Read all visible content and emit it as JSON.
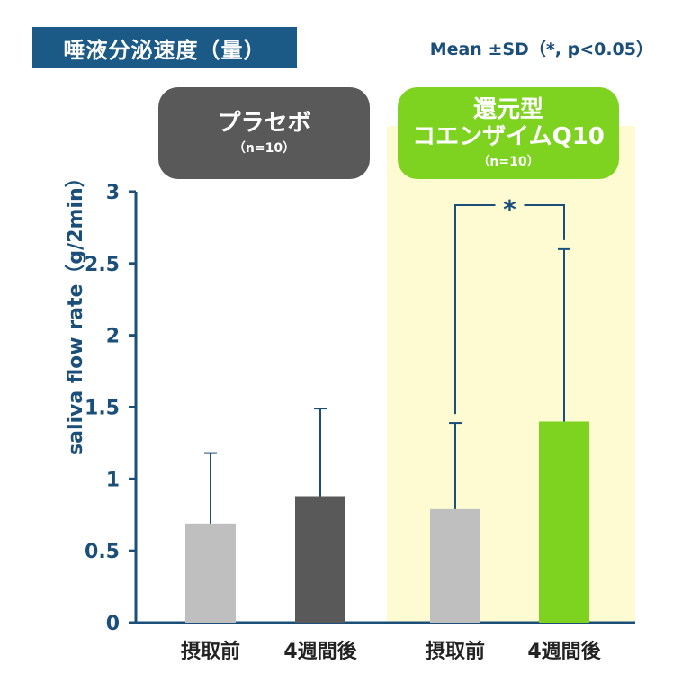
{
  "title": "唾液分泌速度（量）",
  "stats_note": "Mean ±SD（*, p<0.05）",
  "groups": [
    {
      "name_lines": [
        "プラセボ"
      ],
      "n_label": "（n=10）"
    },
    {
      "name_lines": [
        "還元型",
        "コエンザイムQ10"
      ],
      "n_label": "（n=10）"
    }
  ],
  "colors": {
    "title_bg": "#1b5a86",
    "axis": "#1b4f7a",
    "placebo_box": "#595959",
    "coq10_box": "#7ed321",
    "highlight": "#fefbd3",
    "bar_before": "#bfbfbf",
    "bar_placebo_after": "#595959",
    "bar_coq10_after": "#7ed321"
  },
  "chart_data": {
    "type": "bar",
    "title": "唾液分泌速度（量）",
    "ylabel": "saliva flow rate（g/2min）",
    "xlabel": "",
    "ylim": [
      0,
      3
    ],
    "yticks": [
      0,
      0.5,
      1,
      1.5,
      2,
      2.5,
      3
    ],
    "ytick_labels": [
      "0",
      "0.5",
      "1",
      "1.5",
      "2",
      "2.5",
      "3"
    ],
    "categories": [
      "摂取前",
      "4週間後",
      "摂取前",
      "4週間後"
    ],
    "bars": [
      {
        "group": "プラセボ",
        "label": "摂取前",
        "value": 0.69,
        "sd": 0.49,
        "color": "#bfbfbf"
      },
      {
        "group": "プラセボ",
        "label": "4週間後",
        "value": 0.88,
        "sd": 0.61,
        "color": "#595959"
      },
      {
        "group": "還元型コエンザイムQ10",
        "label": "摂取前",
        "value": 0.79,
        "sd": 0.6,
        "color": "#bfbfbf"
      },
      {
        "group": "還元型コエンザイムQ10",
        "label": "4週間後",
        "value": 1.4,
        "sd": 1.2,
        "color": "#7ed321"
      }
    ],
    "significance": {
      "between": [
        2,
        3
      ],
      "label": "*"
    },
    "grid": false,
    "legend": "none"
  }
}
